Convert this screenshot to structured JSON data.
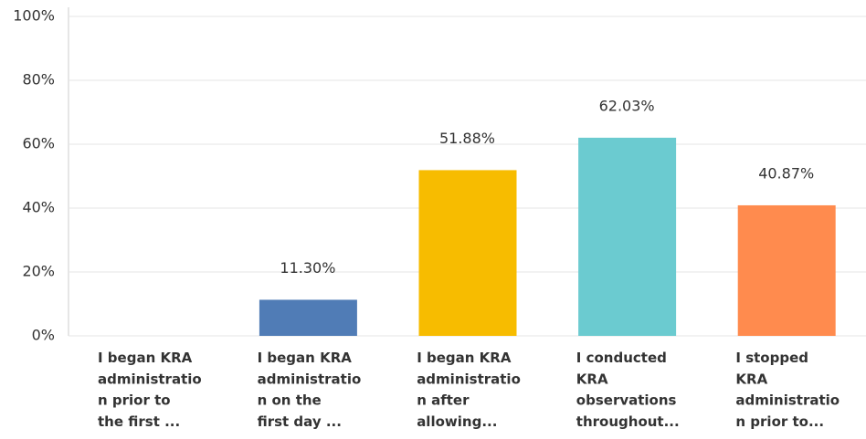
{
  "chart_data": {
    "type": "bar",
    "categories": [
      "I began KRA\nadministratio\nn prior to\nthe first ...",
      "I began KRA\nadministratio\nn on the\nfirst day ...",
      "I began KRA\nadministratio\nn after\nallowing...",
      "I conducted\nKRA\nobservations\nthroughout...",
      "I stopped\nKRA\nadministratio\nn prior to..."
    ],
    "values": [
      0,
      11.3,
      51.88,
      62.03,
      40.87
    ],
    "value_labels": [
      null,
      "11.30%",
      "51.88%",
      "62.03%",
      "40.87%"
    ],
    "colors": [
      "#507cb6",
      "#507cb6",
      "#f7bc00",
      "#6bcbd0",
      "#ff8b4e"
    ],
    "ylim": [
      0,
      100
    ],
    "yticks": [
      {
        "value": 0,
        "label": "0%"
      },
      {
        "value": 20,
        "label": "20%"
      },
      {
        "value": 40,
        "label": "40%"
      },
      {
        "value": 60,
        "label": "60%"
      },
      {
        "value": 80,
        "label": "80%"
      },
      {
        "value": 100,
        "label": "100%"
      }
    ],
    "grid": true
  }
}
